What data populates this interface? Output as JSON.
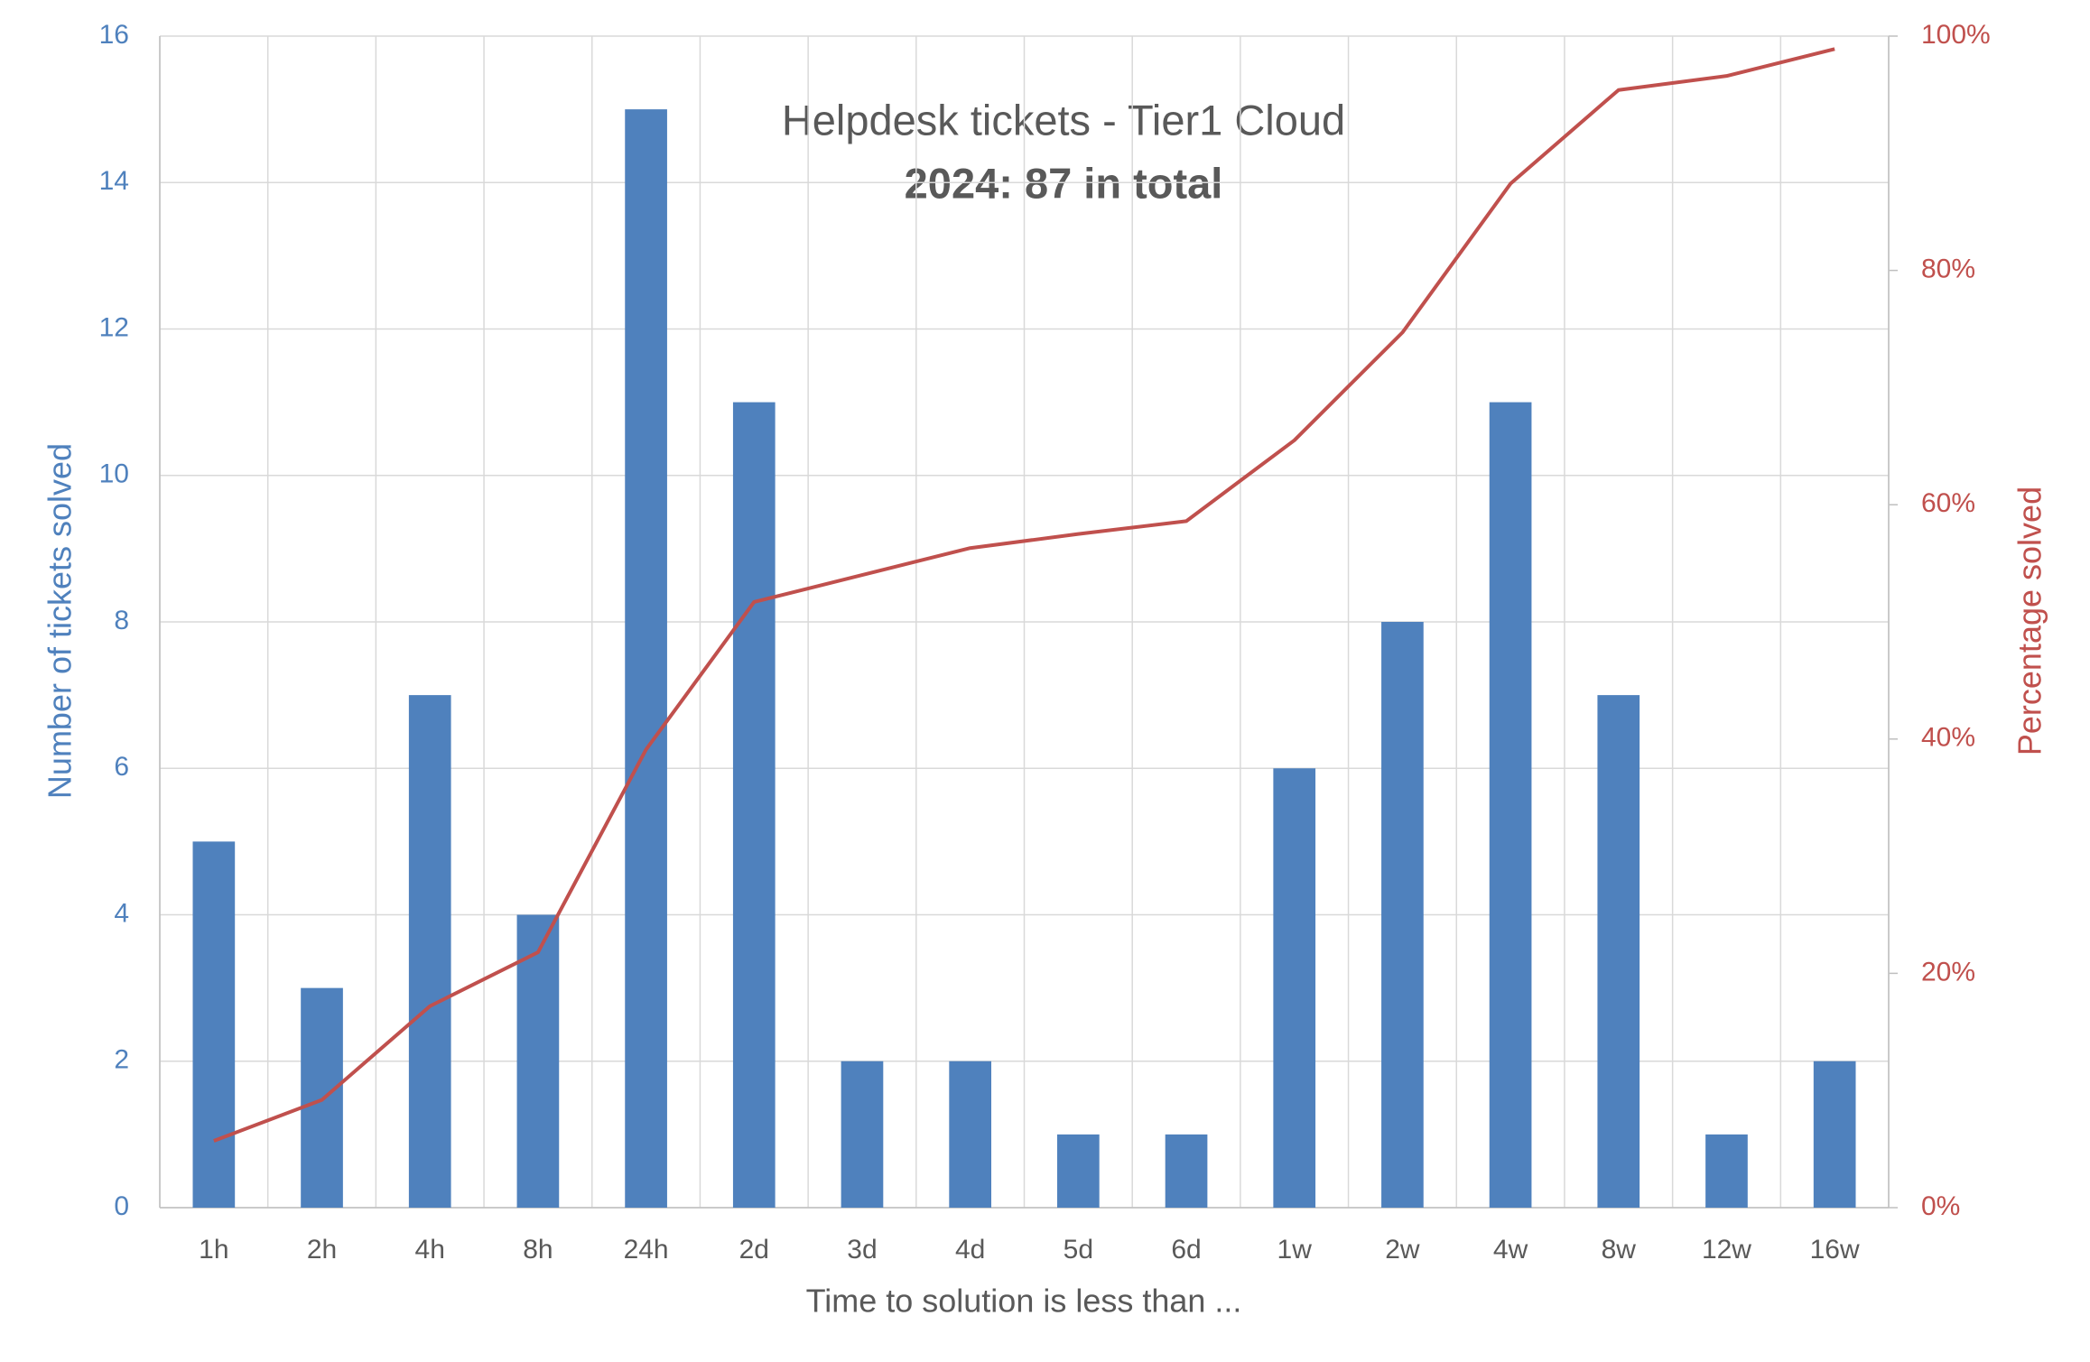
{
  "chart_data": {
    "type": "bar+line",
    "title": "Helpdesk tickets - Tier1 Cloud",
    "subtitle": "2024: 87 in total",
    "x_label": "Time to solution is less than ...",
    "y_label": "Number of tickets solved",
    "y2_label": "Percentage solved",
    "categories": [
      "1h",
      "2h",
      "4h",
      "8h",
      "24h",
      "2d",
      "3d",
      "4d",
      "5d",
      "6d",
      "1w",
      "2w",
      "4w",
      "8w",
      "12w",
      "16w"
    ],
    "series": [
      {
        "name": "Number of tickets solved",
        "type": "bar",
        "color": "#4f81bd",
        "values": [
          5,
          3,
          7,
          4,
          15,
          11,
          2,
          2,
          1,
          1,
          6,
          8,
          11,
          7,
          1,
          2
        ]
      },
      {
        "name": "Percentage solved",
        "type": "line",
        "axis": "y2",
        "color": "#c0504d",
        "values": [
          5.7,
          9.2,
          17.2,
          21.8,
          39.1,
          51.7,
          54.0,
          56.3,
          57.5,
          58.6,
          65.5,
          74.7,
          87.4,
          95.4,
          96.6,
          98.9
        ]
      }
    ],
    "ylim": [
      0,
      16
    ],
    "yticks": [
      0,
      2,
      4,
      6,
      8,
      10,
      12,
      14,
      16
    ],
    "y2lim": [
      0,
      100
    ],
    "y2ticks": [
      {
        "value": 0,
        "label": "0%"
      },
      {
        "value": 20,
        "label": "20%"
      },
      {
        "value": 40,
        "label": "40%"
      },
      {
        "value": 60,
        "label": "60%"
      },
      {
        "value": 80,
        "label": "80%"
      },
      {
        "value": 100,
        "label": "100%"
      }
    ],
    "grid": true
  }
}
